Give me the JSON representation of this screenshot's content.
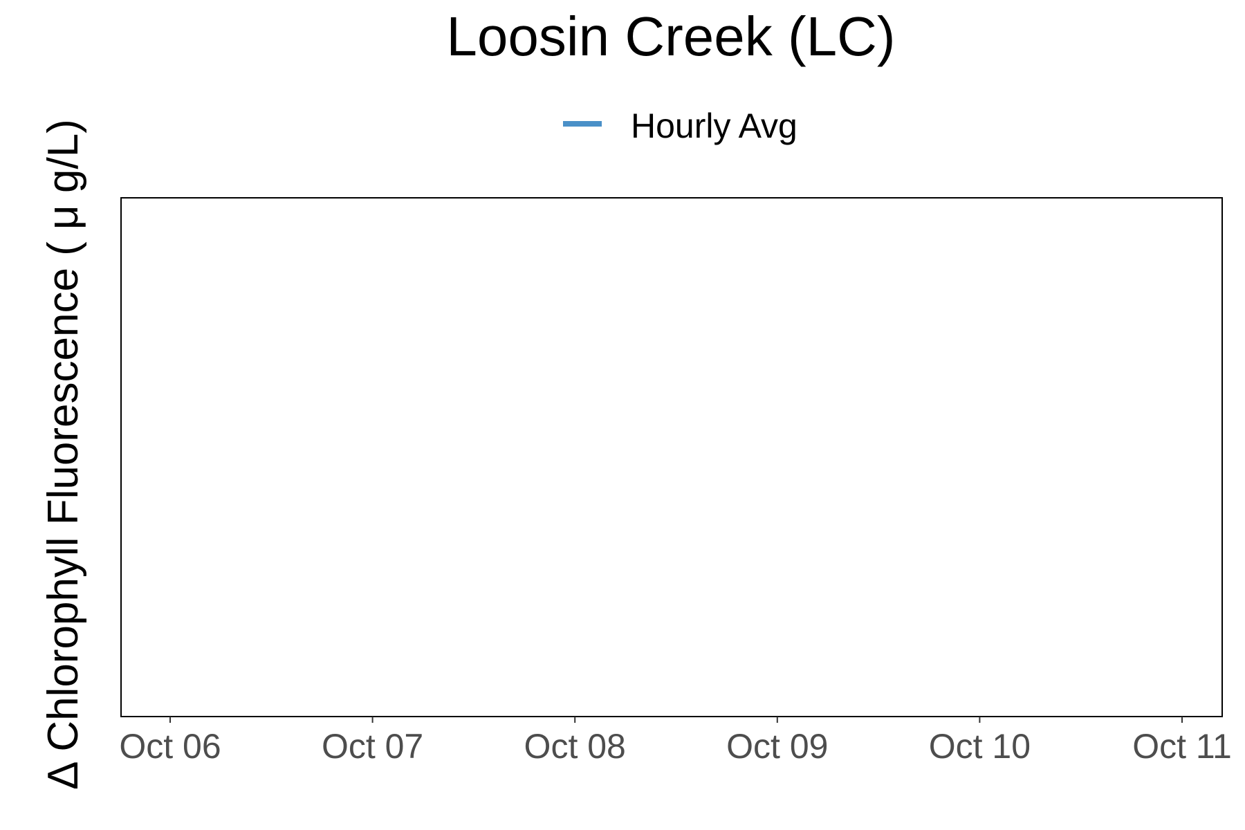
{
  "chart_data": {
    "type": "line",
    "title": "Loosin Creek (LC)",
    "xlabel": "",
    "ylabel": "Δ Chlorophyll Fluorescence ( μ g/L)",
    "x_ticks": [
      "Oct 06",
      "Oct 07",
      "Oct 08",
      "Oct 09",
      "Oct 10",
      "Oct 11"
    ],
    "x": [],
    "series": [
      {
        "name": "Hourly Avg",
        "color": "#4a90c8",
        "values": []
      }
    ],
    "legend_position": "top",
    "grid": false
  }
}
